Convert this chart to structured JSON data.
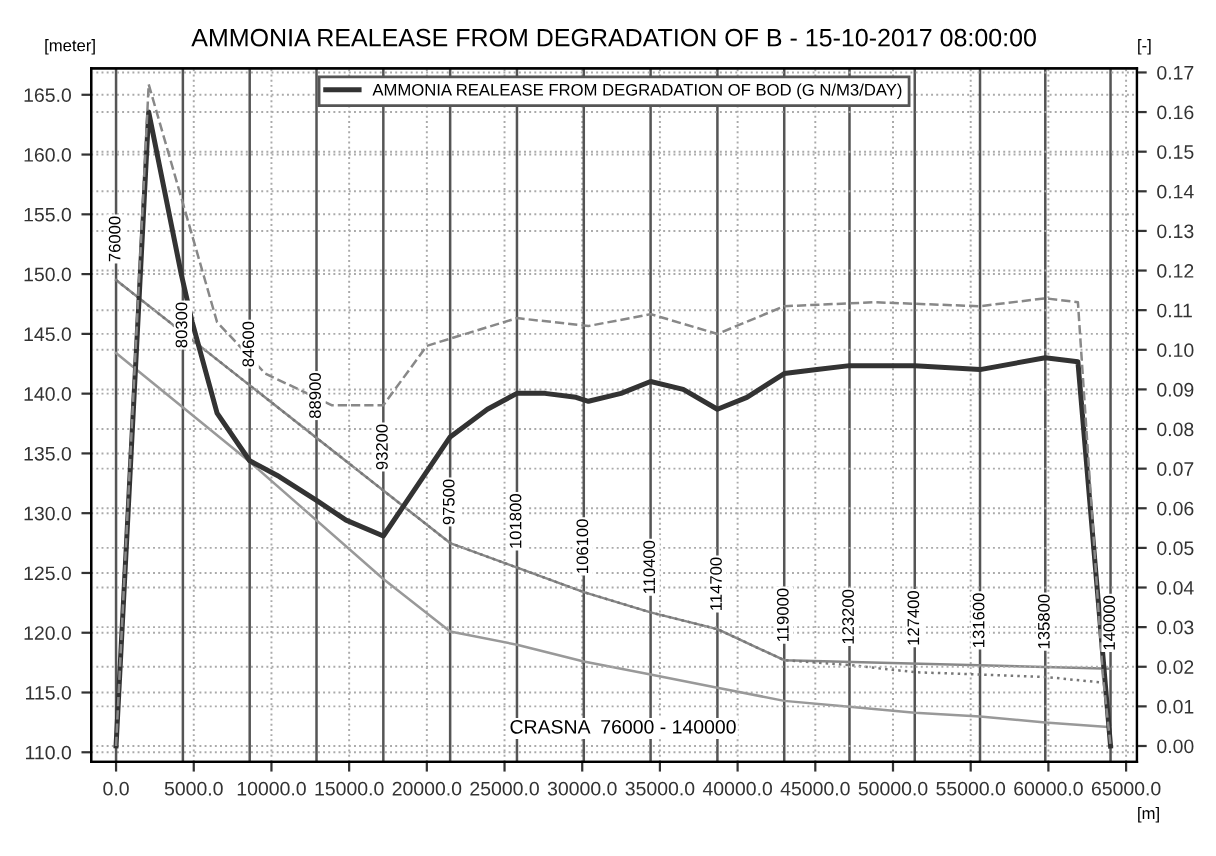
{
  "chart_data": {
    "type": "line",
    "title": "AMMONIA REALEASE FROM DEGRADATION OF B - 15-10-2017 08:00:00",
    "ylabel": "[meter]",
    "y2label": "[-]",
    "xlabel": "[m]",
    "annotations": [
      "CRASNA  76000 - 140000",
      {
        "text": "76000",
        "x": 0,
        "y": 151.0
      },
      {
        "text": "80300",
        "x": 4300,
        "y": 143.8
      },
      {
        "text": "84600",
        "x": 8600,
        "y": 142.2
      },
      {
        "text": "88900",
        "x": 12900,
        "y": 137.9
      },
      {
        "text": "93200",
        "x": 17200,
        "y": 133.6
      },
      {
        "text": "97500",
        "x": 21500,
        "y": 129.0
      },
      {
        "text": "101800",
        "x": 25800,
        "y": 127.0
      },
      {
        "text": "106100",
        "x": 30100,
        "y": 124.9
      },
      {
        "text": "110400",
        "x": 34400,
        "y": 123.2
      },
      {
        "text": "114700",
        "x": 38700,
        "y": 121.8
      },
      {
        "text": "119000",
        "x": 43000,
        "y": 119.2
      },
      {
        "text": "123200",
        "x": 47200,
        "y": 119.0
      },
      {
        "text": "127400",
        "x": 51400,
        "y": 118.9
      },
      {
        "text": "131600",
        "x": 55600,
        "y": 118.7
      },
      {
        "text": "135800",
        "x": 59800,
        "y": 118.6
      },
      {
        "text": "140000",
        "x": 64000,
        "y": 118.5
      }
    ],
    "xlim": [
      -1600,
      65700
    ],
    "ylim": [
      109.2,
      167.2
    ],
    "y2lim": [
      -0.004,
      0.171
    ],
    "xticks": [
      {
        "value": 0,
        "label": "0.0"
      },
      {
        "value": 5000,
        "label": "5000.0"
      },
      {
        "value": 10000,
        "label": "10000.0"
      },
      {
        "value": 15000,
        "label": "15000.0"
      },
      {
        "value": 20000,
        "label": "20000.0"
      },
      {
        "value": 25000,
        "label": "25000.0"
      },
      {
        "value": 30000,
        "label": "30000.0"
      },
      {
        "value": 35000,
        "label": "35000.0"
      },
      {
        "value": 40000,
        "label": "40000.0"
      },
      {
        "value": 45000,
        "label": "45000.0"
      },
      {
        "value": 50000,
        "label": "50000.0"
      },
      {
        "value": 55000,
        "label": "55000.0"
      },
      {
        "value": 60000,
        "label": "60000.0"
      },
      {
        "value": 65000,
        "label": "65000.0"
      }
    ],
    "yticks": [
      {
        "value": 110,
        "label": "110.0"
      },
      {
        "value": 115,
        "label": "115.0"
      },
      {
        "value": 120,
        "label": "120.0"
      },
      {
        "value": 125,
        "label": "125.0"
      },
      {
        "value": 130,
        "label": "130.0"
      },
      {
        "value": 135,
        "label": "135.0"
      },
      {
        "value": 140,
        "label": "140.0"
      },
      {
        "value": 145,
        "label": "145.0"
      },
      {
        "value": 150,
        "label": "150.0"
      },
      {
        "value": 155,
        "label": "155.0"
      },
      {
        "value": 160,
        "label": "160.0"
      },
      {
        "value": 165,
        "label": "165.0"
      }
    ],
    "y2ticks": [
      {
        "value": 0,
        "label": "0.00"
      },
      {
        "value": 0.01,
        "label": "0.01"
      },
      {
        "value": 0.02,
        "label": "0.02"
      },
      {
        "value": 0.03,
        "label": "0.03"
      },
      {
        "value": 0.04,
        "label": "0.04"
      },
      {
        "value": 0.05,
        "label": "0.05"
      },
      {
        "value": 0.06,
        "label": "0.06"
      },
      {
        "value": 0.07,
        "label": "0.07"
      },
      {
        "value": 0.08,
        "label": "0.08"
      },
      {
        "value": 0.09,
        "label": "0.09"
      },
      {
        "value": 0.1,
        "label": "0.10"
      },
      {
        "value": 0.11,
        "label": "0.11"
      },
      {
        "value": 0.12,
        "label": "0.12"
      },
      {
        "value": 0.13,
        "label": "0.13"
      },
      {
        "value": 0.14,
        "label": "0.14"
      },
      {
        "value": 0.15,
        "label": "0.15"
      },
      {
        "value": 0.16,
        "label": "0.16"
      },
      {
        "value": 0.17,
        "label": "0.17"
      }
    ],
    "grid": true,
    "legend": "top",
    "marker": "none",
    "series": [
      {
        "name": "AMMONIA REALEASE FROM DEGRADATION OF BOD (G N/M3/DAY)",
        "color": "#333333",
        "axis": "y2",
        "line_style": "solid",
        "x": [
          0,
          2100,
          4200,
          4900,
          6500,
          8600,
          10500,
          12900,
          14800,
          17200,
          21500,
          23900,
          25800,
          27600,
          29600,
          30400,
          32500,
          34400,
          36500,
          38700,
          40600,
          43000,
          45100,
          47200,
          51400,
          55600,
          59800,
          61900,
          63200,
          64000
        ],
        "values": [
          0.0,
          0.16,
          0.119,
          0.107,
          0.084,
          0.072,
          0.068,
          0.062,
          0.057,
          0.053,
          0.078,
          0.085,
          0.089,
          0.089,
          0.088,
          0.087,
          0.089,
          0.092,
          0.09,
          0.085,
          0.088,
          0.094,
          0.095,
          0.096,
          0.096,
          0.095,
          0.098,
          0.097,
          0.037,
          0.0
        ]
      },
      {
        "color": "#888888",
        "axis": "y2",
        "line_style": "dashed",
        "x": [
          0,
          2100,
          6500,
          9600,
          13900,
          17200,
          20000,
          25800,
          30400,
          34400,
          38700,
          43000,
          48800,
          55600,
          59800,
          61900,
          63500,
          64000
        ],
        "values": [
          0.0,
          0.167,
          0.107,
          0.094,
          0.086,
          0.086,
          0.101,
          0.108,
          0.106,
          0.109,
          0.104,
          0.111,
          0.112,
          0.111,
          0.113,
          0.112,
          0.018,
          0.0
        ]
      },
      {
        "color": "#888888",
        "axis": "y",
        "line_style": "solid",
        "x": [
          0,
          21500,
          30100,
          34400,
          38700,
          43000,
          64000
        ],
        "values": [
          149.5,
          127.5,
          123.4,
          121.7,
          120.3,
          117.7,
          117.0
        ]
      },
      {
        "color": "#777777",
        "axis": "y",
        "line_style": "dotted",
        "x": [
          0,
          21500,
          30100,
          34400,
          38700,
          43000,
          47200,
          51400,
          59800,
          63700
        ],
        "values": [
          149.5,
          127.5,
          123.4,
          121.7,
          120.3,
          117.7,
          117.3,
          116.7,
          116.3,
          115.8
        ]
      },
      {
        "color": "#999999",
        "axis": "y",
        "line_style": "solid",
        "x": [
          0,
          8600,
          17200,
          21500,
          25800,
          30100,
          34400,
          38700,
          43000,
          47200,
          51400,
          55600,
          59800,
          64000
        ],
        "values": [
          143.4,
          134.3,
          124.5,
          120.1,
          119.0,
          117.6,
          116.5,
          115.4,
          114.3,
          113.8,
          113.3,
          113.0,
          112.5,
          112.1
        ]
      }
    ],
    "ref_lines": [
      {
        "axis": "x",
        "value": 0
      },
      {
        "axis": "x",
        "value": 4300
      },
      {
        "axis": "x",
        "value": 8600
      },
      {
        "axis": "x",
        "value": 12900
      },
      {
        "axis": "x",
        "value": 17200
      },
      {
        "axis": "x",
        "value": 21500
      },
      {
        "axis": "x",
        "value": 25800
      },
      {
        "axis": "x",
        "value": 30100
      },
      {
        "axis": "x",
        "value": 34400
      },
      {
        "axis": "x",
        "value": 38700
      },
      {
        "axis": "x",
        "value": 43000
      },
      {
        "axis": "x",
        "value": 47200
      },
      {
        "axis": "x",
        "value": 51400
      },
      {
        "axis": "x",
        "value": 55600
      },
      {
        "axis": "x",
        "value": 59800
      },
      {
        "axis": "x",
        "value": 64000
      }
    ]
  }
}
